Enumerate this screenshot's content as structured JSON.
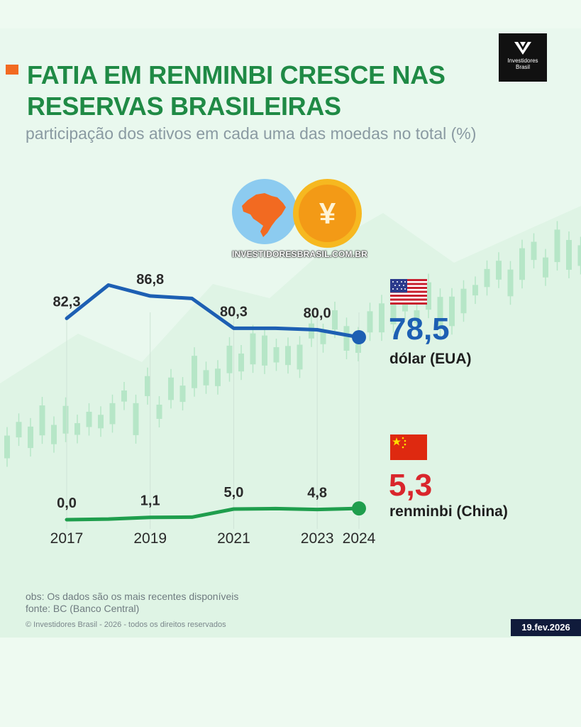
{
  "header": {
    "title_line1": "FATIA EM RENMINBI CRESCE NAS",
    "title_line2": "RESERVAS BRASILEIRAS",
    "subtitle": "participação dos ativos em cada uma das moedas no total (%)"
  },
  "brand": {
    "logo_text_line1": "Investidores",
    "logo_text_line2": "Brasil",
    "website": "INVESTIDORESBRASIL.COM.BR",
    "yen_symbol": "¥"
  },
  "chart_data": {
    "type": "line",
    "title": "FATIA EM RENMINBI CRESCE NAS RESERVAS BRASILEIRAS",
    "subtitle": "participação dos ativos em cada uma das moedas no total (%)",
    "x": [
      2017,
      2018,
      2019,
      2020,
      2021,
      2022,
      2023,
      2024
    ],
    "tick_labels": [
      "2017",
      "2019",
      "2021",
      "2023",
      "2024"
    ],
    "tick_values": [
      2017,
      2019,
      2021,
      2023,
      2024
    ],
    "grid": false,
    "series": [
      {
        "name": "dólar (EUA)",
        "color": "#1d5fb3",
        "values": [
          82.3,
          89.0,
          86.8,
          86.3,
          80.3,
          80.3,
          80.0,
          78.5
        ],
        "labels": [
          {
            "x": 2017,
            "text": "82,3"
          },
          {
            "x": 2019,
            "text": "86,8"
          },
          {
            "x": 2021,
            "text": "80,3"
          },
          {
            "x": 2023,
            "text": "80,0"
          }
        ],
        "latest_value": "78,5"
      },
      {
        "name": "renminbi (China)",
        "color": "#1f9e4d",
        "values": [
          0.0,
          0.3,
          1.1,
          1.2,
          5.0,
          5.2,
          4.8,
          5.3
        ],
        "labels": [
          {
            "x": 2017,
            "text": "0,0"
          },
          {
            "x": 2019,
            "text": "1,1"
          },
          {
            "x": 2021,
            "text": "5,0"
          },
          {
            "x": 2023,
            "text": "4,8"
          }
        ],
        "latest_value": "5,3"
      }
    ]
  },
  "legend": {
    "usd": {
      "value": "78,5",
      "name": "dólar (EUA)",
      "color": "#1d5fb3",
      "icon": "usa-flag-icon"
    },
    "cny": {
      "value": "5,3",
      "name": "renminbi (China)",
      "color": "#d9262c",
      "icon": "china-flag-icon"
    }
  },
  "footer": {
    "obs": "obs: Os dados são os mais recentes disponíveis",
    "source": "fonte: BC (Banco Central)",
    "copyright": "© Investidores Brasil - 2026 - todos os direitos reservados",
    "date": "19.fev.2026"
  }
}
